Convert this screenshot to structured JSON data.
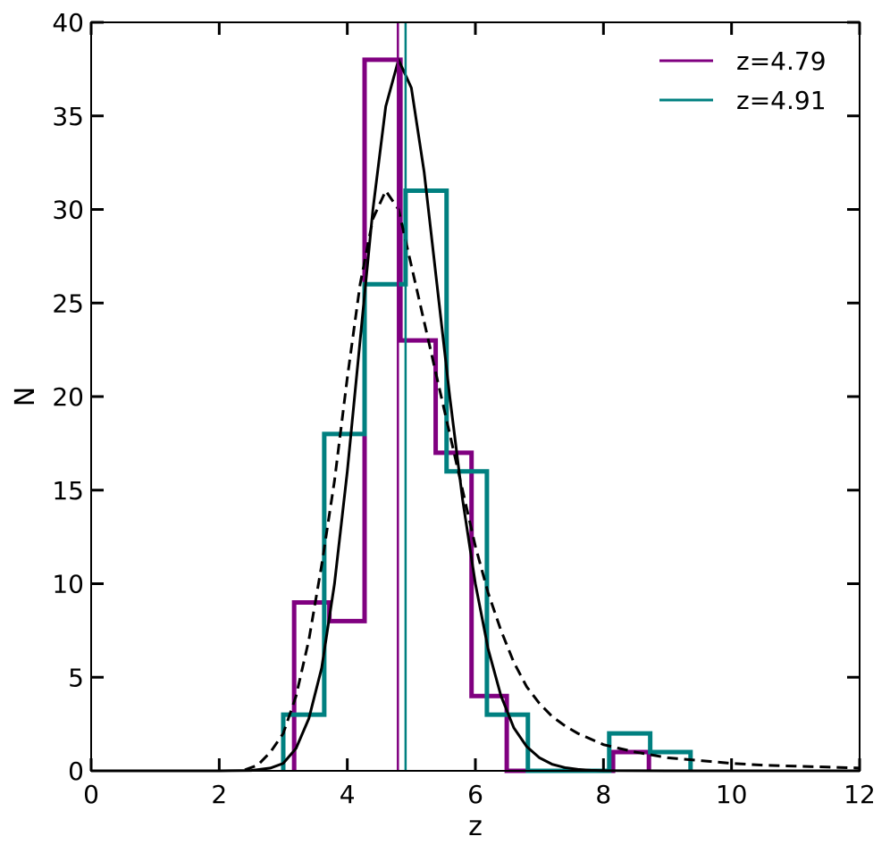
{
  "chart_data": {
    "type": "histogram",
    "title": "",
    "xlabel": "z",
    "ylabel": "N",
    "xlim": [
      0,
      12
    ],
    "ylim": [
      0,
      40
    ],
    "xticks": [
      0,
      2,
      4,
      6,
      8,
      10,
      12
    ],
    "yticks": [
      0,
      5,
      10,
      15,
      20,
      25,
      30,
      35,
      40
    ],
    "grid": false,
    "legend_position": "top-right",
    "histograms": [
      {
        "name": "z=4.79",
        "color": "#800080",
        "bins": [
          {
            "x0": 3.17,
            "x1": 3.72,
            "count": 9
          },
          {
            "x0": 3.72,
            "x1": 4.27,
            "count": 8
          },
          {
            "x0": 4.27,
            "x1": 4.83,
            "count": 38
          },
          {
            "x0": 4.83,
            "x1": 5.38,
            "count": 23
          },
          {
            "x0": 5.38,
            "x1": 5.94,
            "count": 17
          },
          {
            "x0": 5.94,
            "x1": 6.49,
            "count": 4
          },
          {
            "x0": 6.49,
            "x1": 7.04,
            "count": 0
          },
          {
            "x0": 7.04,
            "x1": 7.6,
            "count": 0
          },
          {
            "x0": 7.6,
            "x1": 8.15,
            "count": 0
          },
          {
            "x0": 8.15,
            "x1": 8.71,
            "count": 1
          }
        ]
      },
      {
        "name": "z=4.91",
        "color": "#008080",
        "bins": [
          {
            "x0": 3.0,
            "x1": 3.64,
            "count": 3
          },
          {
            "x0": 3.64,
            "x1": 4.27,
            "count": 18
          },
          {
            "x0": 4.27,
            "x1": 4.91,
            "count": 26
          },
          {
            "x0": 4.91,
            "x1": 5.55,
            "count": 31
          },
          {
            "x0": 5.55,
            "x1": 6.18,
            "count": 16
          },
          {
            "x0": 6.18,
            "x1": 6.82,
            "count": 3
          },
          {
            "x0": 6.82,
            "x1": 7.45,
            "count": 0
          },
          {
            "x0": 7.45,
            "x1": 8.09,
            "count": 0
          },
          {
            "x0": 8.09,
            "x1": 8.73,
            "count": 2
          },
          {
            "x0": 8.73,
            "x1": 9.36,
            "count": 1
          }
        ]
      }
    ],
    "vlines": [
      {
        "name": "z=4.79",
        "x": 4.79,
        "color": "#800080"
      },
      {
        "name": "z=4.91",
        "x": 4.91,
        "color": "#008080"
      }
    ],
    "curves": [
      {
        "style": "solid",
        "color": "#000000",
        "points": [
          [
            0,
            0
          ],
          [
            1,
            0
          ],
          [
            2,
            0
          ],
          [
            2.5,
            0.02
          ],
          [
            2.8,
            0.15
          ],
          [
            3,
            0.4
          ],
          [
            3.2,
            1.2
          ],
          [
            3.4,
            2.8
          ],
          [
            3.6,
            5.5
          ],
          [
            3.8,
            10
          ],
          [
            4,
            16
          ],
          [
            4.2,
            23
          ],
          [
            4.4,
            30
          ],
          [
            4.6,
            35.5
          ],
          [
            4.8,
            38
          ],
          [
            5,
            36.5
          ],
          [
            5.2,
            32
          ],
          [
            5.4,
            26
          ],
          [
            5.6,
            20
          ],
          [
            5.8,
            14.5
          ],
          [
            6,
            10
          ],
          [
            6.2,
            6.5
          ],
          [
            6.4,
            4
          ],
          [
            6.6,
            2.3
          ],
          [
            6.8,
            1.3
          ],
          [
            7,
            0.7
          ],
          [
            7.2,
            0.35
          ],
          [
            7.4,
            0.17
          ],
          [
            7.6,
            0.08
          ],
          [
            7.8,
            0.03
          ],
          [
            8,
            0.01
          ],
          [
            9,
            0
          ],
          [
            12,
            0
          ]
        ]
      },
      {
        "style": "dashed",
        "color": "#000000",
        "points": [
          [
            2.4,
            0.05
          ],
          [
            2.6,
            0.3
          ],
          [
            2.8,
            1
          ],
          [
            3,
            2
          ],
          [
            3.2,
            4
          ],
          [
            3.4,
            7
          ],
          [
            3.6,
            11
          ],
          [
            3.8,
            15.5
          ],
          [
            4,
            21
          ],
          [
            4.2,
            26
          ],
          [
            4.4,
            29.5
          ],
          [
            4.6,
            31
          ],
          [
            4.8,
            30
          ],
          [
            5,
            27
          ],
          [
            5.2,
            24
          ],
          [
            5.4,
            21
          ],
          [
            5.6,
            18
          ],
          [
            5.8,
            15
          ],
          [
            6,
            12
          ],
          [
            6.2,
            9.5
          ],
          [
            6.4,
            7.5
          ],
          [
            6.6,
            5.8
          ],
          [
            6.8,
            4.5
          ],
          [
            7,
            3.6
          ],
          [
            7.2,
            2.9
          ],
          [
            7.4,
            2.4
          ],
          [
            7.6,
            2
          ],
          [
            7.8,
            1.7
          ],
          [
            8,
            1.4
          ],
          [
            8.5,
            1
          ],
          [
            9,
            0.7
          ],
          [
            9.5,
            0.55
          ],
          [
            10,
            0.4
          ],
          [
            10.5,
            0.3
          ],
          [
            11,
            0.25
          ],
          [
            11.5,
            0.2
          ],
          [
            12,
            0.15
          ]
        ]
      }
    ]
  }
}
